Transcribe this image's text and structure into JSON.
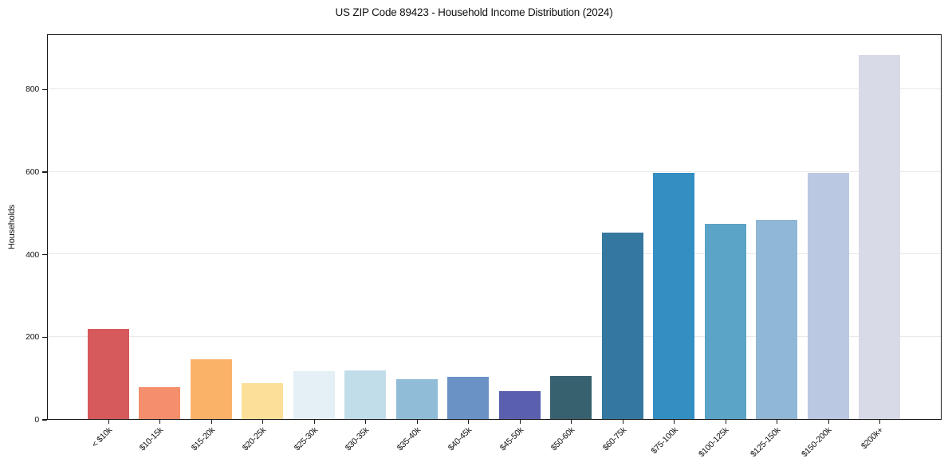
{
  "chart_data": {
    "type": "bar",
    "title": "US ZIP Code 89423 - Household Income Distribution (2024)",
    "xlabel": "",
    "ylabel": "Households",
    "categories": [
      "< $10k",
      "$10-15k",
      "$15-20k",
      "$20-25k",
      "$25-30k",
      "$30-35k",
      "$35-40k",
      "$40-45k",
      "$45-50k",
      "$50-60k",
      "$60-75k",
      "$75-100k",
      "$100-125k",
      "$125-150k",
      "$150-200k",
      "$200k+"
    ],
    "values": [
      218,
      77,
      145,
      87,
      116,
      118,
      96,
      102,
      67,
      104,
      452,
      597,
      473,
      483,
      597,
      882
    ],
    "bar_colors": [
      "#d6595b",
      "#f58e6c",
      "#fab269",
      "#fcdf99",
      "#e4f0f6",
      "#c2ddea",
      "#90bcd8",
      "#6b92c5",
      "#5a5fae",
      "#38616f",
      "#35789f",
      "#338ec2",
      "#5ba3c7",
      "#90b7d5",
      "#bac9e1",
      "#d8dae8"
    ],
    "yticks": [
      0,
      200,
      400,
      600,
      800
    ],
    "ylim": [
      0,
      934
    ],
    "grid": "horizontal-only",
    "legend": "none",
    "x_tick_rotation_deg": 45
  },
  "colors": {
    "background": "#ffffff",
    "grid": "#e9e9e9",
    "spine": "#1a1a1a",
    "text": "#111111"
  }
}
